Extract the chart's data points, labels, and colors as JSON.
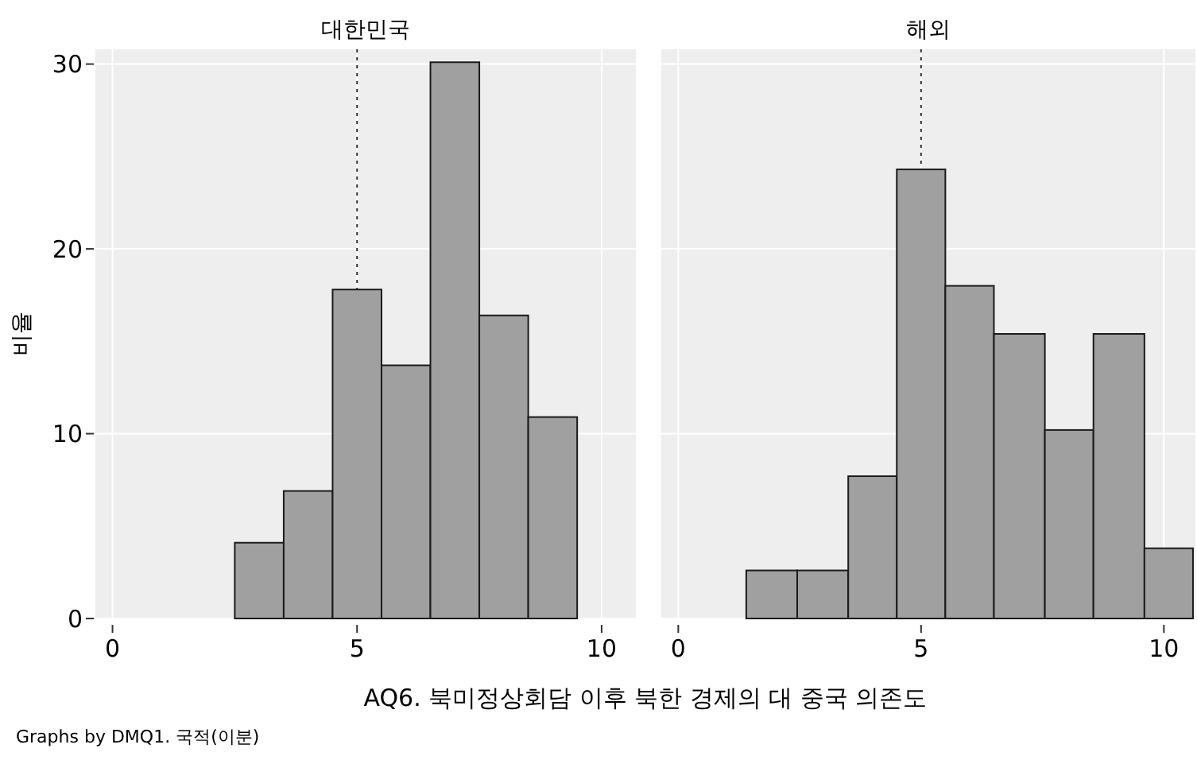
{
  "chart_data": [
    {
      "type": "histogram",
      "title": "대한민국",
      "ylabel": "비율",
      "xlabel": "AQ6. 북미정상회담 이후 북한 경제의 대 중국 의존도",
      "annotations": [
        "Graphs by DMQ1. 국적(이분)"
      ],
      "bins": [
        2.5,
        3.5,
        4.5,
        5.5,
        6.5,
        7.5,
        8.5,
        9.5
      ],
      "values": [
        4.1,
        6.9,
        17.8,
        13.7,
        30.1,
        16.4,
        10.9
      ],
      "color": "#a0a0a0",
      "xlim": [
        -0.35,
        10.7
      ],
      "xticks": [
        0,
        5,
        10
      ],
      "ylim": [
        0,
        30.8
      ],
      "yticks": [
        0,
        10,
        20,
        30
      ],
      "grid": true,
      "ref_lines": [
        {
          "axis": "x",
          "value": 5,
          "line_style": "dotted",
          "color": "#333333"
        }
      ]
    },
    {
      "type": "histogram",
      "title": "해외",
      "bins": [
        1.4,
        2.45,
        3.5,
        4.5,
        5.5,
        6.5,
        7.55,
        8.55,
        9.6,
        10.6
      ],
      "values": [
        2.6,
        2.6,
        7.7,
        24.3,
        18.0,
        15.4,
        10.2,
        15.4,
        3.8
      ],
      "color": "#a0a0a0",
      "xlim": [
        -0.35,
        10.65
      ],
      "xticks": [
        0,
        5,
        10
      ],
      "ylim": [
        0,
        30.8
      ],
      "yticks": [
        0,
        10,
        20,
        30
      ],
      "grid": true,
      "tick_labels": "x",
      "ref_lines": [
        {
          "axis": "x",
          "value": 5,
          "line_style": "dotted",
          "color": "#333333"
        }
      ]
    }
  ]
}
